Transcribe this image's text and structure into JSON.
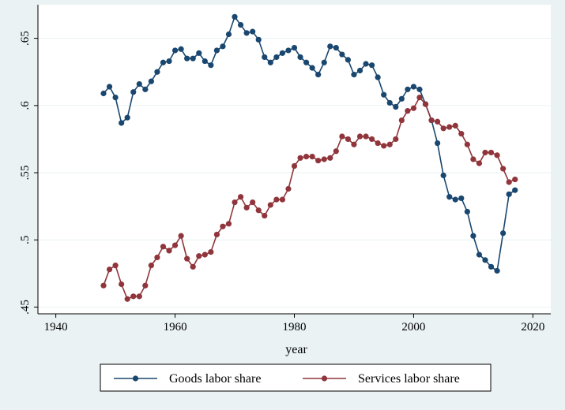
{
  "chart_data": {
    "type": "line",
    "title": "",
    "xlabel": "year",
    "ylabel": "",
    "xlim": [
      1937,
      2023
    ],
    "ylim": [
      0.445,
      0.675
    ],
    "x_ticks": [
      1940,
      1960,
      1980,
      2000,
      2020
    ],
    "x_tick_labels": [
      "1940",
      "1960",
      "1980",
      "2000",
      "2020"
    ],
    "y_ticks": [
      0.45,
      0.5,
      0.55,
      0.6,
      0.65
    ],
    "y_tick_labels": [
      ".45",
      ".5",
      ".55",
      ".6",
      ".65"
    ],
    "grid": "horizontal",
    "legend_position": "bottom",
    "x": [
      1948,
      1949,
      1950,
      1951,
      1952,
      1953,
      1954,
      1955,
      1956,
      1957,
      1958,
      1959,
      1960,
      1961,
      1962,
      1963,
      1964,
      1965,
      1966,
      1967,
      1968,
      1969,
      1970,
      1971,
      1972,
      1973,
      1974,
      1975,
      1976,
      1977,
      1978,
      1979,
      1980,
      1981,
      1982,
      1983,
      1984,
      1985,
      1986,
      1987,
      1988,
      1989,
      1990,
      1991,
      1992,
      1993,
      1994,
      1995,
      1996,
      1997,
      1998,
      1999,
      2000,
      2001,
      2002,
      2003,
      2004,
      2005,
      2006,
      2007,
      2008,
      2009,
      2010,
      2011,
      2012,
      2013,
      2014,
      2015,
      2016,
      2017
    ],
    "series": [
      {
        "name": "Goods labor  share",
        "color": "#1a476f",
        "values": [
          0.609,
          0.614,
          0.606,
          0.587,
          0.591,
          0.61,
          0.616,
          0.612,
          0.618,
          0.625,
          0.632,
          0.633,
          0.641,
          0.642,
          0.635,
          0.635,
          0.639,
          0.633,
          0.63,
          0.641,
          0.644,
          0.653,
          0.666,
          0.66,
          0.654,
          0.655,
          0.649,
          0.636,
          0.632,
          0.636,
          0.639,
          0.641,
          0.643,
          0.636,
          0.632,
          0.628,
          0.623,
          0.632,
          0.644,
          0.643,
          0.638,
          0.634,
          0.623,
          0.626,
          0.631,
          0.63,
          0.621,
          0.608,
          0.602,
          0.599,
          0.605,
          0.612,
          0.614,
          0.612,
          0.601,
          0.589,
          0.572,
          0.548,
          0.532,
          0.53,
          0.531,
          0.521,
          0.503,
          0.489,
          0.485,
          0.48,
          0.477,
          0.505,
          0.534,
          0.537
        ]
      },
      {
        "name": "Services labor  share",
        "color": "#90353b",
        "values": [
          0.466,
          0.478,
          0.481,
          0.467,
          0.456,
          0.458,
          0.458,
          0.466,
          0.481,
          0.487,
          0.495,
          0.492,
          0.496,
          0.503,
          0.486,
          0.48,
          0.488,
          0.489,
          0.491,
          0.504,
          0.51,
          0.512,
          0.528,
          0.532,
          0.524,
          0.528,
          0.522,
          0.518,
          0.526,
          0.53,
          0.53,
          0.538,
          0.555,
          0.561,
          0.562,
          0.562,
          0.559,
          0.56,
          0.561,
          0.566,
          0.577,
          0.575,
          0.571,
          0.577,
          0.577,
          0.575,
          0.572,
          0.57,
          0.571,
          0.575,
          0.589,
          0.596,
          0.598,
          0.606,
          0.601,
          0.589,
          0.588,
          0.583,
          0.584,
          0.585,
          0.579,
          0.571,
          0.56,
          0.557,
          0.565,
          0.565,
          0.563,
          0.553,
          0.543,
          0.545
        ]
      }
    ]
  }
}
